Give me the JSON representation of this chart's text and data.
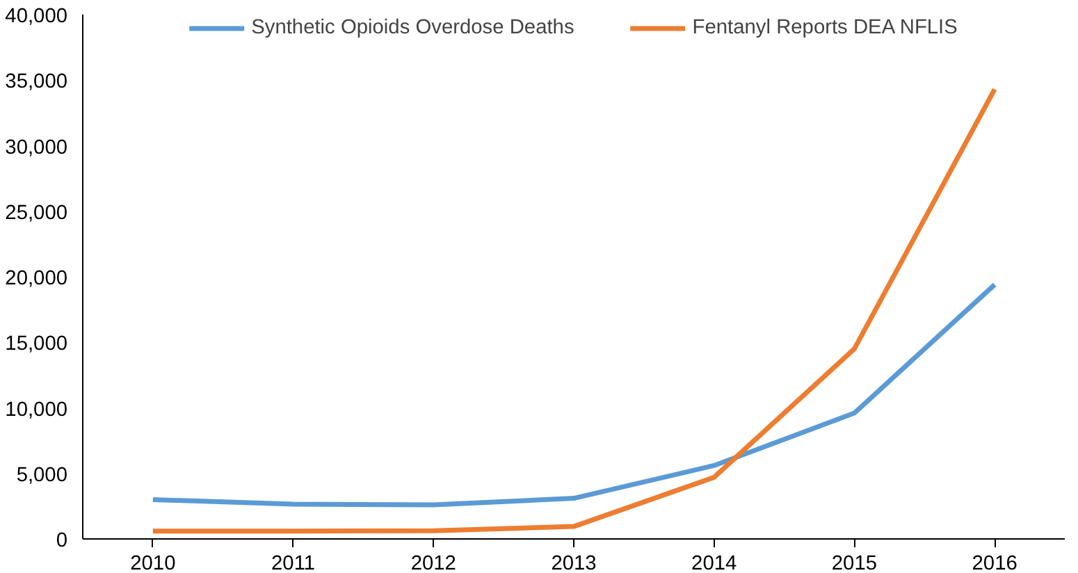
{
  "chart_data": {
    "type": "line",
    "categories": [
      "2010",
      "2011",
      "2012",
      "2013",
      "2014",
      "2015",
      "2016"
    ],
    "series": [
      {
        "name": "Synthetic Opioids Overdose Deaths",
        "color": "#5b9bd5",
        "values": [
          3000,
          2650,
          2600,
          3100,
          5600,
          9600,
          19400
        ]
      },
      {
        "name": "Fentanyl Reports DEA NFLIS",
        "color": "#ed7d31",
        "values": [
          600,
          600,
          620,
          950,
          4700,
          14500,
          34300
        ]
      }
    ],
    "ylim": [
      0,
      40000
    ],
    "yticks": [
      {
        "value": 0,
        "label": "0"
      },
      {
        "value": 5000,
        "label": "5,000"
      },
      {
        "value": 10000,
        "label": "10,000"
      },
      {
        "value": 15000,
        "label": "15,000"
      },
      {
        "value": 20000,
        "label": "20,000"
      },
      {
        "value": 25000,
        "label": "25,000"
      },
      {
        "value": 30000,
        "label": "30,000"
      },
      {
        "value": 35000,
        "label": "35,000"
      },
      {
        "value": 40000,
        "label": "40,000"
      }
    ],
    "grid": false,
    "legend": "top",
    "marker": "none",
    "line_style": "solid"
  }
}
